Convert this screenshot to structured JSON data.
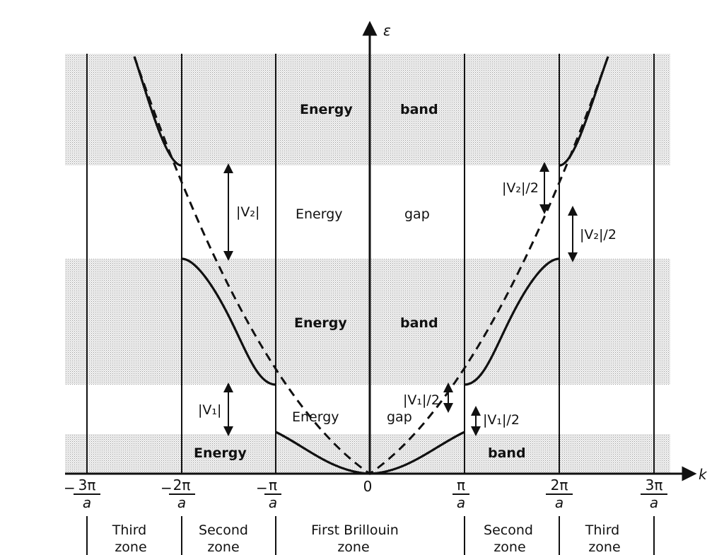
{
  "axes": {
    "y_symbol": "ε",
    "x_symbol": "k"
  },
  "ticks": [
    {
      "num": "3π",
      "den": "a",
      "sign": "−"
    },
    {
      "num": "2π",
      "den": "a",
      "sign": "−"
    },
    {
      "num": "π",
      "den": "a",
      "sign": "−"
    },
    {
      "num": "0",
      "den": "",
      "sign": ""
    },
    {
      "num": "π",
      "den": "a",
      "sign": ""
    },
    {
      "num": "2π",
      "den": "a",
      "sign": ""
    },
    {
      "num": "3π",
      "den": "a",
      "sign": ""
    }
  ],
  "regions": {
    "band_top": [
      "Energy",
      "band"
    ],
    "gap_upper": [
      "Energy",
      "gap"
    ],
    "band_middle": [
      "Energy",
      "band"
    ],
    "gap_lower": [
      "Energy",
      "gap"
    ],
    "band_bottom": [
      "Energy",
      "band"
    ]
  },
  "gap_labels": {
    "v2_left": "|V₂|",
    "v2_half_upper": "|V₂|/2",
    "v2_half_lower": "|V₂|/2",
    "v1_left": "|V₁|",
    "v1_half_upper": "|V₁|/2",
    "v1_half_lower": "|V₁|/2"
  },
  "zones": [
    {
      "line1": "Third",
      "line2": "zone"
    },
    {
      "line1": "Second",
      "line2": "zone"
    },
    {
      "line1": "First Brillouin",
      "line2": "zone"
    },
    {
      "line1": "Second",
      "line2": "zone"
    },
    {
      "line1": "Third",
      "line2": "zone"
    }
  ]
}
